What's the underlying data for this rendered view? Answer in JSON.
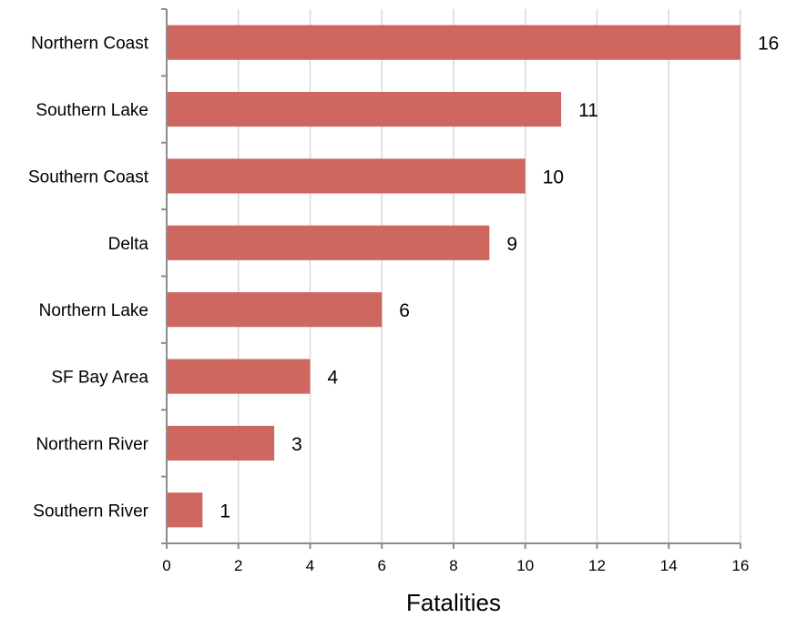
{
  "chart_data": {
    "type": "bar",
    "orientation": "horizontal",
    "title": "",
    "xlabel": "Fatalities",
    "ylabel": "",
    "categories": [
      "Northern Coast",
      "Southern Lake",
      "Southern Coast",
      "Delta",
      "Northern Lake",
      "SF Bay Area",
      "Northern River",
      "Southern River"
    ],
    "values": [
      16,
      11,
      10,
      9,
      6,
      4,
      3,
      1
    ],
    "xlim": [
      0,
      16
    ],
    "xticks": [
      0,
      2,
      4,
      6,
      8,
      10,
      12,
      14,
      16
    ],
    "grid": "vertical",
    "legend": "none",
    "data_labels": true,
    "bar_color": "#cd6760",
    "grid_color": "#d9d9d9",
    "axis_color": "#8c8c8c"
  }
}
